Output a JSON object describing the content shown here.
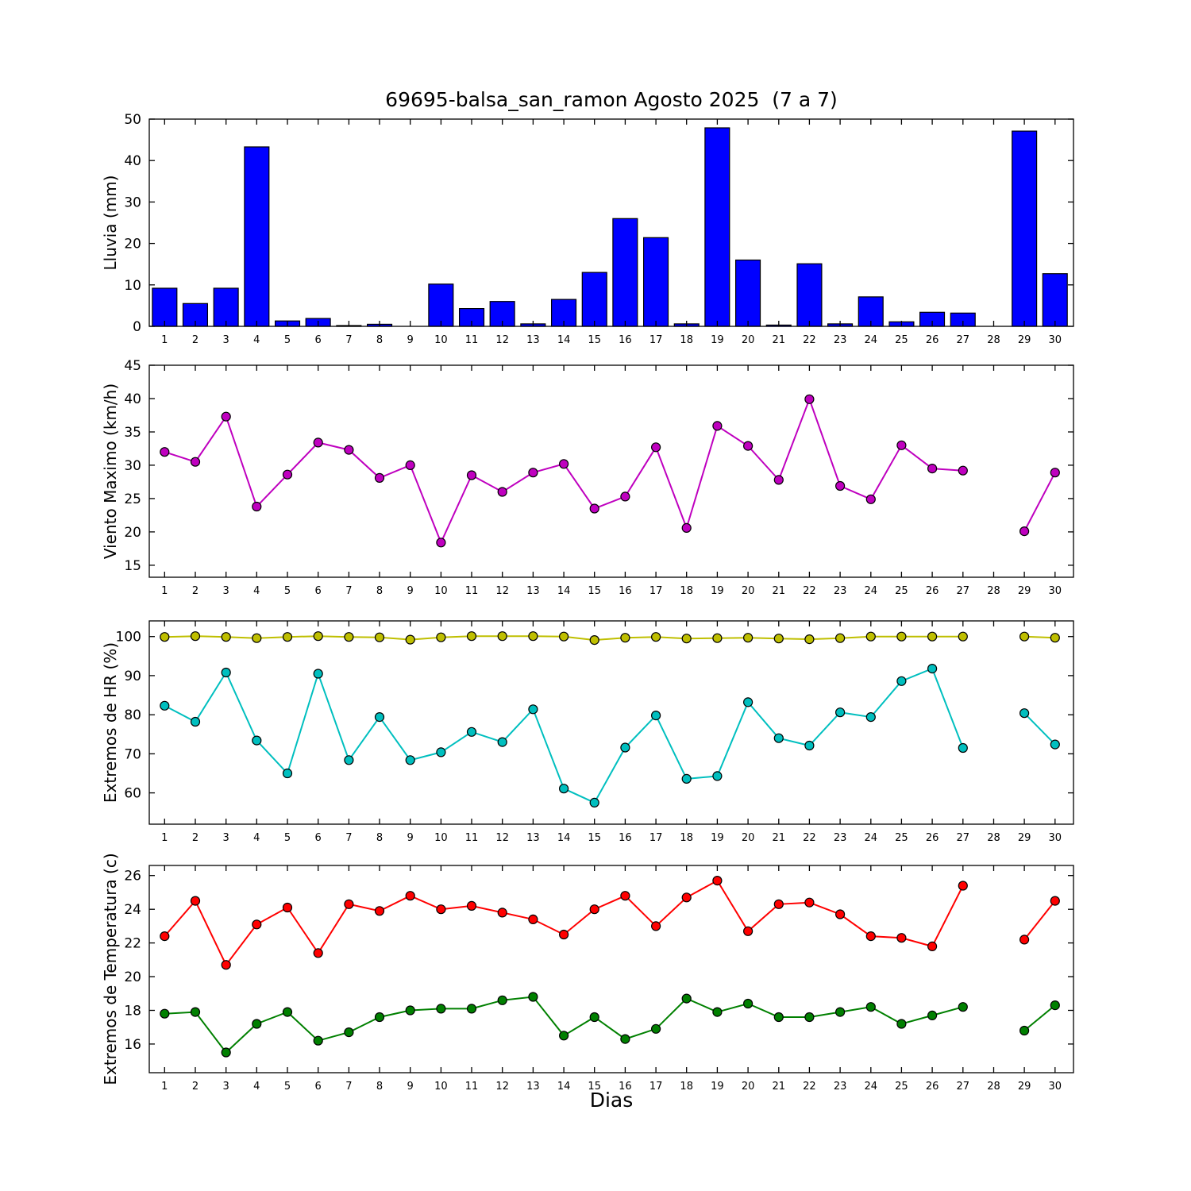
{
  "title": "69695-balsa_san_ramon Agosto 2025  (7 a 7)",
  "xlabel": "Dias",
  "days": [
    "1",
    "2",
    "3",
    "4",
    "5",
    "6",
    "7",
    "8",
    "9",
    "10",
    "11",
    "12",
    "13",
    "14",
    "15",
    "16",
    "17",
    "18",
    "19",
    "20",
    "21",
    "22",
    "23",
    "24",
    "25",
    "26",
    "27",
    "28",
    "29",
    "30"
  ],
  "chart_data": [
    {
      "type": "bar",
      "ylabel": "Lluvia (mm)",
      "ylim": [
        0,
        50
      ],
      "yticks": [
        0,
        10,
        20,
        30,
        40,
        50
      ],
      "bar_color": "#0000ff",
      "values": [
        9.2,
        5.5,
        9.2,
        43.3,
        1.3,
        1.9,
        0.2,
        0.5,
        0,
        10.2,
        4.3,
        6.0,
        0.6,
        6.5,
        13.0,
        26.0,
        21.4,
        0.6,
        47.9,
        16.0,
        0.3,
        15.1,
        0.6,
        7.1,
        1.1,
        3.4,
        3.2,
        0,
        47.1,
        12.7
      ]
    },
    {
      "type": "line",
      "ylabel": "Viento Maximo (km/h)",
      "ylim": [
        13.2,
        45
      ],
      "yticks": [
        15,
        20,
        25,
        30,
        35,
        40,
        45
      ],
      "series": [
        {
          "name": "viento-maximo",
          "color": "#bf00bf",
          "values": [
            32.0,
            30.5,
            37.3,
            23.8,
            28.6,
            33.4,
            32.3,
            28.1,
            30.0,
            18.4,
            28.5,
            26.0,
            28.9,
            30.2,
            23.5,
            25.3,
            32.7,
            20.6,
            35.9,
            32.9,
            27.8,
            39.9,
            26.9,
            24.9,
            33.0,
            29.5,
            29.2,
            null,
            20.1,
            28.9
          ]
        }
      ]
    },
    {
      "type": "line",
      "ylabel": "Extremos de HR (%)",
      "ylim": [
        52,
        104
      ],
      "yticks": [
        60,
        70,
        80,
        90,
        100
      ],
      "series": [
        {
          "name": "hr-max",
          "color": "#bfbf00",
          "values": [
            99.9,
            100.1,
            99.9,
            99.6,
            99.9,
            100.1,
            99.9,
            99.8,
            99.2,
            99.8,
            100.1,
            100.1,
            100.1,
            100.0,
            99.1,
            99.7,
            99.9,
            99.5,
            99.6,
            99.7,
            99.5,
            99.3,
            99.6,
            100.0,
            100.0,
            100.0,
            100.0,
            null,
            100.0,
            99.7
          ]
        },
        {
          "name": "hr-min",
          "color": "#00bfbf",
          "values": [
            82.3,
            78.2,
            90.8,
            73.4,
            65.0,
            90.5,
            68.4,
            79.4,
            68.4,
            70.4,
            75.6,
            73.0,
            81.4,
            61.1,
            57.5,
            71.6,
            79.8,
            63.6,
            64.3,
            83.2,
            74.0,
            72.1,
            80.6,
            79.4,
            88.6,
            91.8,
            71.5,
            null,
            80.4,
            72.4
          ]
        }
      ]
    },
    {
      "type": "line",
      "ylabel": "Extremos de Temperatura (c)",
      "ylim": [
        14.3,
        26.6
      ],
      "yticks": [
        16,
        18,
        20,
        22,
        24,
        26
      ],
      "series": [
        {
          "name": "temp-max",
          "color": "#ff0000",
          "values": [
            22.4,
            24.5,
            20.7,
            23.1,
            24.1,
            21.4,
            24.3,
            23.9,
            24.8,
            24.0,
            24.2,
            23.8,
            23.4,
            22.5,
            24.0,
            24.8,
            23.0,
            24.7,
            25.7,
            22.7,
            24.3,
            24.4,
            23.7,
            22.4,
            22.3,
            21.8,
            25.4,
            null,
            22.2,
            24.5
          ]
        },
        {
          "name": "temp-min",
          "color": "#008000",
          "values": [
            17.8,
            17.9,
            15.5,
            17.2,
            17.9,
            16.2,
            16.7,
            17.6,
            18.0,
            18.1,
            18.1,
            18.6,
            18.8,
            16.5,
            17.6,
            16.3,
            16.9,
            18.7,
            17.9,
            18.4,
            17.6,
            17.6,
            17.9,
            18.2,
            17.2,
            17.7,
            18.2,
            null,
            16.8,
            18.3
          ]
        }
      ]
    }
  ]
}
